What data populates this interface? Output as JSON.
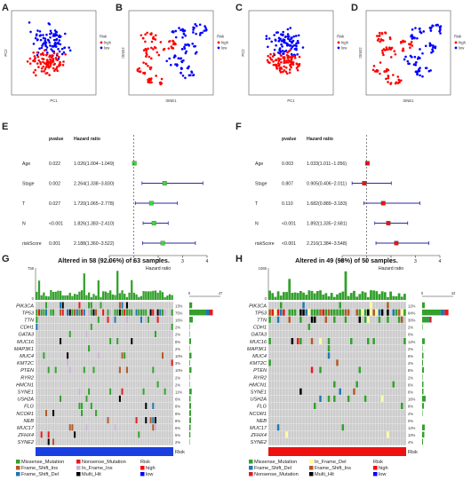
{
  "panels": {
    "A": {
      "label": "A",
      "xlabel": "PC1",
      "ylabel": "PC2",
      "legend_title": "Risk",
      "legend": [
        "high",
        "low"
      ],
      "colors": {
        "high": "#ff0000",
        "low": "#0000ff"
      }
    },
    "B": {
      "label": "B",
      "xlabel": "tSNE1",
      "ylabel": "tSNE2",
      "legend_title": "Risk",
      "legend": [
        "high",
        "low"
      ]
    },
    "C": {
      "label": "C",
      "xlabel": "PC1",
      "ylabel": "PC2",
      "legend_title": "Risk",
      "legend": [
        "high",
        "low"
      ]
    },
    "D": {
      "label": "D",
      "xlabel": "tSNE1",
      "ylabel": "tSNE2",
      "legend_title": "Risk",
      "legend": [
        "high",
        "low"
      ]
    },
    "E": {
      "label": "E",
      "col_pvalue": "pvalue",
      "col_hr": "Hazard ratio",
      "xlabel": "Hazard ratio",
      "marker_color": "#39d939",
      "ticks": [
        "0",
        "1",
        "2",
        "3",
        "4"
      ],
      "rows": [
        {
          "name": "Age",
          "pvalue": "0.022",
          "hr": "1.026(1.004−1.049)",
          "est": 1.026,
          "lo": 1.004,
          "hi": 1.049
        },
        {
          "name": "Stage",
          "pvalue": "0.002",
          "hr": "2.264(1.338−3.830)",
          "est": 2.264,
          "lo": 1.338,
          "hi": 3.83
        },
        {
          "name": "T",
          "pvalue": "0.027",
          "hr": "1.720(1.065−2.778)",
          "est": 1.72,
          "lo": 1.065,
          "hi": 2.778
        },
        {
          "name": "N",
          "pvalue": "<0.001",
          "hr": "1.826(1.383−2.410)",
          "est": 1.826,
          "lo": 1.383,
          "hi": 2.41
        },
        {
          "name": "riskScore",
          "pvalue": "0.001",
          "hr": "2.188(1.360−3.522)",
          "est": 2.188,
          "lo": 1.36,
          "hi": 3.522
        }
      ]
    },
    "F": {
      "label": "F",
      "col_pvalue": "pvalue",
      "col_hr": "Hazard ratio",
      "xlabel": "Hazard ratio",
      "marker_color": "#ee1111",
      "ticks": [
        "0",
        "1",
        "2",
        "3",
        "4"
      ],
      "rows": [
        {
          "name": "Age",
          "pvalue": "0.003",
          "hr": "1.033(1.011−1.056)",
          "est": 1.033,
          "lo": 1.011,
          "hi": 1.056
        },
        {
          "name": "Stage",
          "pvalue": "0.807",
          "hr": "0.905(0.406−2.011)",
          "est": 0.905,
          "lo": 0.406,
          "hi": 2.011
        },
        {
          "name": "T",
          "pvalue": "0.110",
          "hr": "1.682(0.889−3.183)",
          "est": 1.682,
          "lo": 0.889,
          "hi": 3.183
        },
        {
          "name": "N",
          "pvalue": "<0.001",
          "hr": "1.892(1.335−2.681)",
          "est": 1.892,
          "lo": 1.335,
          "hi": 2.681
        },
        {
          "name": "riskScore",
          "pvalue": "<0.001",
          "hr": "2.216(1.384−3.548)",
          "est": 2.216,
          "lo": 1.384,
          "hi": 3.548
        }
      ]
    },
    "G": {
      "label": "G",
      "title": "Altered in 58 (92.06%) of 63 samples.",
      "top_max": "758",
      "side_max": "47",
      "side_zero": "0",
      "risk_label": "Risk",
      "risk_color": "#1a3fe0",
      "genes": [
        {
          "name": "PIK3CA",
          "pct": "13%"
        },
        {
          "name": "TP53",
          "pct": "75%"
        },
        {
          "name": "TTN",
          "pct": "16%"
        },
        {
          "name": "CDH1",
          "pct": "2%"
        },
        {
          "name": "GATA3",
          "pct": "2%"
        },
        {
          "name": "MUC16",
          "pct": "8%"
        },
        {
          "name": "MAP3K1",
          "pct": "2%"
        },
        {
          "name": "MUC4",
          "pct": "10%"
        },
        {
          "name": "KMT2C",
          "pct": "3%"
        },
        {
          "name": "PTEN",
          "pct": "10%"
        },
        {
          "name": "RYR2",
          "pct": "2%"
        },
        {
          "name": "HMCN1",
          "pct": "2%"
        },
        {
          "name": "SYNE1",
          "pct": "11%"
        },
        {
          "name": "USH2A",
          "pct": "6%"
        },
        {
          "name": "FLG",
          "pct": "8%"
        },
        {
          "name": "NCOR1",
          "pct": "8%"
        },
        {
          "name": "NEB",
          "pct": "8%"
        },
        {
          "name": "MUC17",
          "pct": "6%"
        },
        {
          "name": "ZFHX4",
          "pct": "5%"
        },
        {
          "name": "SYNE2",
          "pct": "2%"
        }
      ],
      "legend": [
        {
          "label": "Missense_Mutation",
          "color": "#33a02c"
        },
        {
          "label": "Nonsense_Mutation",
          "color": "#e31a1c"
        },
        {
          "label": "Frame_Shift_Ins",
          "color": "#b15928"
        },
        {
          "label": "In_Frame_Ins",
          "color": "#cab2d6"
        },
        {
          "label": "Frame_Shift_Del",
          "color": "#1f78b4"
        },
        {
          "label": "Multi_Hit",
          "color": "#000000"
        }
      ],
      "risk_legend": [
        {
          "label": "high",
          "color": "#ff0000"
        },
        {
          "label": "low",
          "color": "#0000ff"
        }
      ]
    },
    "H": {
      "label": "H",
      "title": "Altered in 49 (98%) of 50 samples.",
      "top_max": "1065",
      "side_max": "42",
      "side_zero": "0",
      "risk_label": "Risk",
      "risk_color": "#ee1111",
      "genes": [
        {
          "name": "PIK3CA",
          "pct": "12%"
        },
        {
          "name": "TP53",
          "pct": "84%"
        },
        {
          "name": "TTN",
          "pct": "30%"
        },
        {
          "name": "CDH1",
          "pct": "2%"
        },
        {
          "name": "GATA3",
          "pct": "0%"
        },
        {
          "name": "MUC16",
          "pct": "12%"
        },
        {
          "name": "MAP3K1",
          "pct": "2%"
        },
        {
          "name": "MUC4",
          "pct": "6%"
        },
        {
          "name": "KMT2C",
          "pct": "4%"
        },
        {
          "name": "PTEN",
          "pct": "8%"
        },
        {
          "name": "RYR2",
          "pct": "2%"
        },
        {
          "name": "HMCN1",
          "pct": "6%"
        },
        {
          "name": "SYNE1",
          "pct": "6%"
        },
        {
          "name": "USH2A",
          "pct": "16%"
        },
        {
          "name": "FLG",
          "pct": "8%"
        },
        {
          "name": "NCOR1",
          "pct": "2%"
        },
        {
          "name": "NEB",
          "pct": "0%"
        },
        {
          "name": "MUC17",
          "pct": "12%"
        },
        {
          "name": "ZFHX4",
          "pct": "10%"
        },
        {
          "name": "SYNE2",
          "pct": "4%"
        }
      ],
      "legend": [
        {
          "label": "Missense_Mutation",
          "color": "#33a02c"
        },
        {
          "label": "In_Frame_Del",
          "color": "#ffff99"
        },
        {
          "label": "Frame_Shift_Del",
          "color": "#1f78b4"
        },
        {
          "label": "Frame_Shift_Ins",
          "color": "#b15928"
        },
        {
          "label": "Nonsense_Mutation",
          "color": "#e31a1c"
        },
        {
          "label": "Multi_Hit",
          "color": "#000000"
        }
      ],
      "risk_legend": [
        {
          "label": "high",
          "color": "#ff0000"
        },
        {
          "label": "low",
          "color": "#0000ff"
        }
      ]
    }
  }
}
